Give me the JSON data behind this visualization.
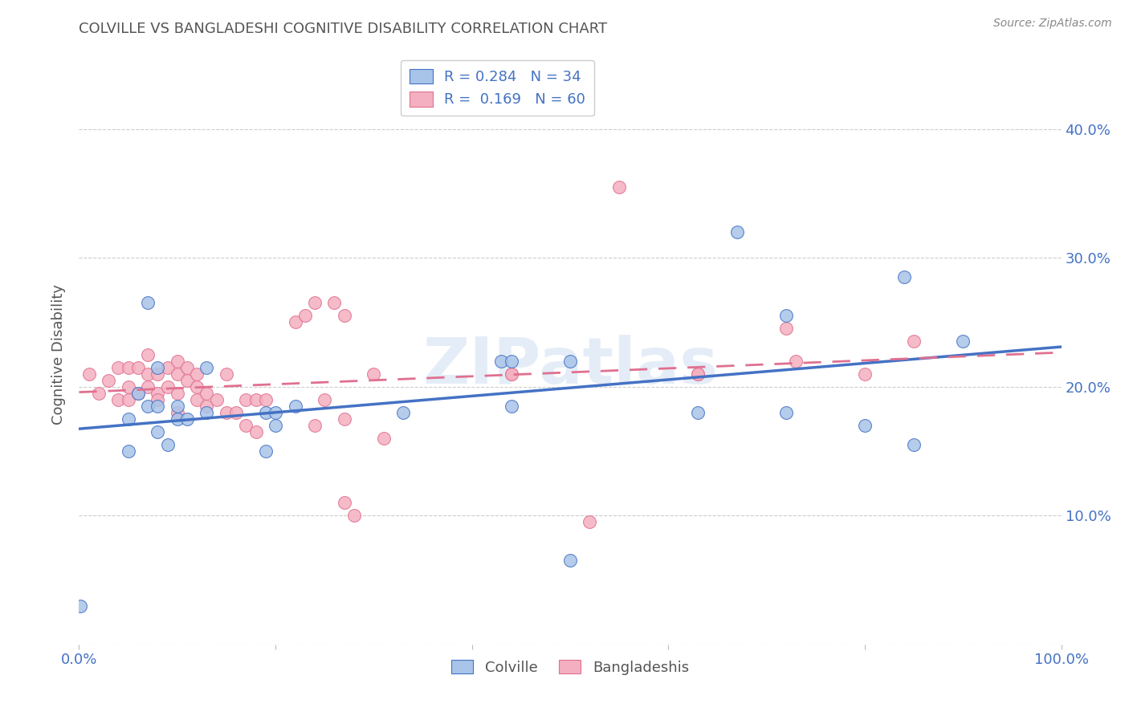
{
  "title": "COLVILLE VS BANGLADESHI COGNITIVE DISABILITY CORRELATION CHART",
  "source": "Source: ZipAtlas.com",
  "ylabel": "Cognitive Disability",
  "legend_labels": [
    "Colville",
    "Bangladeshis"
  ],
  "colville_R": 0.284,
  "colville_N": 34,
  "bangladeshi_R": 0.169,
  "bangladeshi_N": 60,
  "colville_color": "#a8c4e8",
  "bangladeshi_color": "#f4b0c0",
  "colville_line_color": "#4472c4",
  "bangladeshi_line_color": "#e07090",
  "legend_text_color": "#4472c4",
  "title_color": "#555555",
  "axis_label_color": "#4472c4",
  "watermark": "ZIPatlas",
  "colville_x": [
    0.001,
    0.05,
    0.05,
    0.06,
    0.07,
    0.07,
    0.08,
    0.08,
    0.08,
    0.09,
    0.1,
    0.1,
    0.11,
    0.13,
    0.13,
    0.19,
    0.19,
    0.2,
    0.2,
    0.22,
    0.33,
    0.43,
    0.44,
    0.44,
    0.5,
    0.5,
    0.63,
    0.67,
    0.72,
    0.72,
    0.8,
    0.84,
    0.85,
    0.9
  ],
  "colville_y": [
    0.03,
    0.175,
    0.15,
    0.195,
    0.265,
    0.185,
    0.215,
    0.185,
    0.165,
    0.155,
    0.185,
    0.175,
    0.175,
    0.215,
    0.18,
    0.18,
    0.15,
    0.18,
    0.17,
    0.185,
    0.18,
    0.22,
    0.22,
    0.185,
    0.22,
    0.065,
    0.18,
    0.32,
    0.18,
    0.255,
    0.17,
    0.285,
    0.155,
    0.235
  ],
  "bangladeshi_x": [
    0.01,
    0.02,
    0.03,
    0.04,
    0.04,
    0.05,
    0.05,
    0.05,
    0.06,
    0.06,
    0.07,
    0.07,
    0.07,
    0.08,
    0.08,
    0.08,
    0.09,
    0.09,
    0.1,
    0.1,
    0.1,
    0.1,
    0.11,
    0.11,
    0.12,
    0.12,
    0.12,
    0.13,
    0.13,
    0.14,
    0.15,
    0.15,
    0.16,
    0.17,
    0.17,
    0.18,
    0.18,
    0.19,
    0.22,
    0.23,
    0.24,
    0.24,
    0.25,
    0.26,
    0.27,
    0.27,
    0.27,
    0.28,
    0.3,
    0.31,
    0.44,
    0.44,
    0.52,
    0.55,
    0.63,
    0.63,
    0.72,
    0.73,
    0.8,
    0.85
  ],
  "bangladeshi_y": [
    0.21,
    0.195,
    0.205,
    0.215,
    0.19,
    0.215,
    0.2,
    0.19,
    0.215,
    0.195,
    0.225,
    0.21,
    0.2,
    0.21,
    0.195,
    0.19,
    0.215,
    0.2,
    0.22,
    0.21,
    0.195,
    0.18,
    0.215,
    0.205,
    0.21,
    0.2,
    0.19,
    0.195,
    0.185,
    0.19,
    0.21,
    0.18,
    0.18,
    0.17,
    0.19,
    0.19,
    0.165,
    0.19,
    0.25,
    0.255,
    0.265,
    0.17,
    0.19,
    0.265,
    0.255,
    0.11,
    0.175,
    0.1,
    0.21,
    0.16,
    0.21,
    0.21,
    0.095,
    0.355,
    0.21,
    0.21,
    0.245,
    0.22,
    0.21,
    0.235
  ],
  "xlim": [
    0.0,
    1.0
  ],
  "ylim": [
    0.0,
    0.45
  ],
  "yticks": [
    0.0,
    0.1,
    0.2,
    0.3,
    0.4
  ],
  "ytick_labels_right": [
    "",
    "10.0%",
    "20.0%",
    "30.0%",
    "40.0%"
  ],
  "xticks": [
    0.0,
    0.2,
    0.4,
    0.6,
    0.8,
    1.0
  ],
  "xtick_labels": [
    "0.0%",
    "",
    "",
    "",
    "",
    "100.0%"
  ],
  "background_color": "#ffffff",
  "grid_color": "#cccccc"
}
